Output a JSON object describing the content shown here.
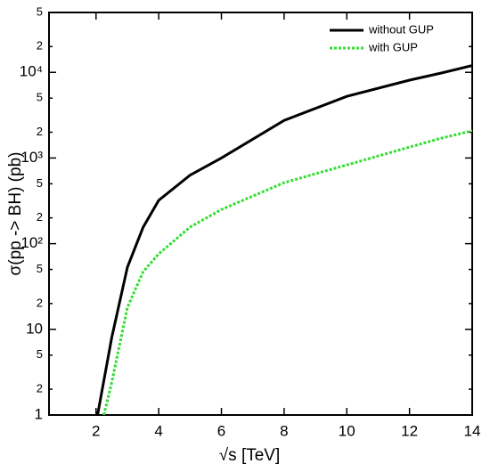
{
  "chart_data": {
    "type": "line",
    "x_label": "√s [TeV]",
    "y_label": "σ(pp -> BH) (pb)",
    "xlim": [
      0.5,
      14
    ],
    "xticks": [
      2,
      4,
      6,
      8,
      10,
      12,
      14
    ],
    "ylim": [
      1,
      50000
    ],
    "log_y": true,
    "yticks": [
      1,
      2,
      5,
      10,
      {
        "value": 20,
        "label": "2"
      },
      {
        "value": 50,
        "label": "5"
      },
      {
        "value": 100,
        "label": "10²"
      },
      {
        "value": 200,
        "label": "2"
      },
      {
        "value": 500,
        "label": "5"
      },
      {
        "value": 1000,
        "label": "10³"
      },
      {
        "value": 2000,
        "label": "2"
      },
      {
        "value": 5000,
        "label": "5"
      },
      {
        "value": 10000,
        "label": "10⁴"
      },
      {
        "value": 20000,
        "label": "2"
      },
      {
        "value": 50000,
        "label": "5"
      }
    ],
    "legend": "top-right",
    "series": [
      {
        "name": "without GUP",
        "color": "#000000",
        "dash": false,
        "x": [
          2.05,
          2.5,
          3,
          3.5,
          4,
          5,
          6,
          8,
          10,
          12,
          13,
          14
        ],
        "values": [
          1,
          8,
          53,
          155,
          320,
          630,
          1000,
          2750,
          5250,
          8100,
          9800,
          12000
        ]
      },
      {
        "name": "with GUP",
        "color": "#33dd33",
        "dash": true,
        "x": [
          2.25,
          2.5,
          3,
          3.5,
          4,
          5,
          6,
          8,
          10,
          12,
          13,
          14
        ],
        "values": [
          1,
          2.4,
          18,
          47,
          76,
          156,
          250,
          515,
          830,
          1340,
          1700,
          2080
        ]
      }
    ]
  }
}
